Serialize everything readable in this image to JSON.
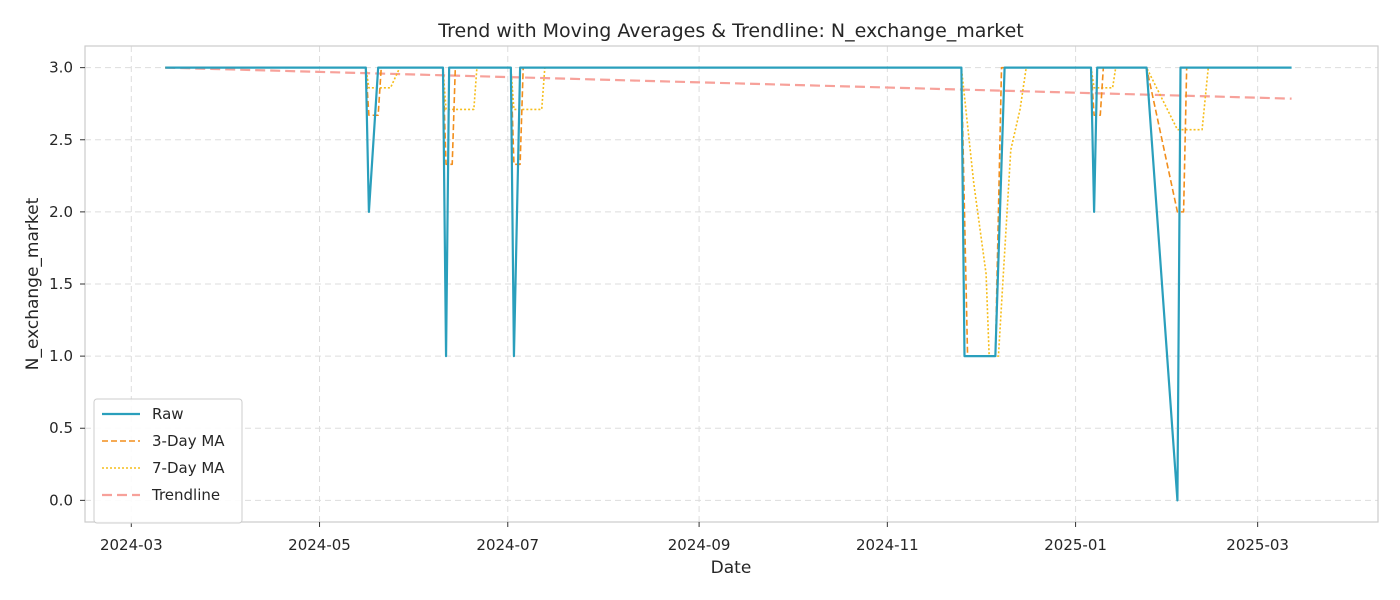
{
  "chart_data": {
    "type": "line",
    "title": "Trend with Moving Averages & Trendline: N_exchange_market",
    "xlabel": "Date",
    "ylabel": "N_exchange_market",
    "xlim": [
      "2024-02-15",
      "2025-04-09"
    ],
    "ylim": [
      -0.15,
      3.15
    ],
    "x_ticks": [
      "2024-03-01",
      "2024-05-01",
      "2024-07-01",
      "2024-09-01",
      "2024-11-01",
      "2025-01-01",
      "2025-03-01"
    ],
    "x_tick_labels": [
      "2024-03",
      "2024-05",
      "2024-07",
      "2024-09",
      "2024-11",
      "2025-01",
      "2025-03"
    ],
    "y_ticks": [
      0.0,
      0.5,
      1.0,
      1.5,
      2.0,
      2.5,
      3.0
    ],
    "y_tick_labels": [
      "0.0",
      "0.5",
      "1.0",
      "1.5",
      "2.0",
      "2.5",
      "3.0"
    ],
    "grid": true,
    "legend_position": "lower-left",
    "series": [
      {
        "name": "Raw",
        "color": "#2a9fbc",
        "style": "solid",
        "points": [
          [
            "2024-03-12",
            3
          ],
          [
            "2024-05-16",
            3
          ],
          [
            "2024-05-17",
            2
          ],
          [
            "2024-05-20",
            3
          ],
          [
            "2024-06-10",
            3
          ],
          [
            "2024-06-11",
            1
          ],
          [
            "2024-06-12",
            3
          ],
          [
            "2024-07-02",
            3
          ],
          [
            "2024-07-03",
            1
          ],
          [
            "2024-07-05",
            3
          ],
          [
            "2024-11-25",
            3
          ],
          [
            "2024-11-26",
            1
          ],
          [
            "2024-12-06",
            1
          ],
          [
            "2024-12-09",
            3
          ],
          [
            "2025-01-06",
            3
          ],
          [
            "2025-01-07",
            2
          ],
          [
            "2025-01-08",
            3
          ],
          [
            "2025-01-24",
            3
          ],
          [
            "2025-02-03",
            0
          ],
          [
            "2025-02-04",
            3
          ],
          [
            "2025-03-12",
            3
          ]
        ]
      },
      {
        "name": "3-Day MA",
        "color": "#f28e1c",
        "style": "dashed",
        "points": [
          [
            "2024-03-12",
            3
          ],
          [
            "2024-05-16",
            3
          ],
          [
            "2024-05-17",
            2.67
          ],
          [
            "2024-05-20",
            2.67
          ],
          [
            "2024-05-21",
            3
          ],
          [
            "2024-06-10",
            3
          ],
          [
            "2024-06-11",
            2.33
          ],
          [
            "2024-06-13",
            2.33
          ],
          [
            "2024-06-14",
            3
          ],
          [
            "2024-07-02",
            3
          ],
          [
            "2024-07-03",
            2.33
          ],
          [
            "2024-07-05",
            2.33
          ],
          [
            "2024-07-06",
            3
          ],
          [
            "2024-11-25",
            3
          ],
          [
            "2024-11-27",
            1.0
          ],
          [
            "2024-12-06",
            1.0
          ],
          [
            "2024-12-08",
            3
          ],
          [
            "2025-01-06",
            3
          ],
          [
            "2025-01-07",
            2.67
          ],
          [
            "2025-01-09",
            2.67
          ],
          [
            "2025-01-10",
            3
          ],
          [
            "2025-01-24",
            3
          ],
          [
            "2025-01-31",
            2.3
          ],
          [
            "2025-02-03",
            2.0
          ],
          [
            "2025-02-05",
            2.0
          ],
          [
            "2025-02-06",
            3
          ],
          [
            "2025-03-12",
            3
          ]
        ]
      },
      {
        "name": "7-Day MA",
        "color": "#f6bd1a",
        "style": "dotted",
        "points": [
          [
            "2024-03-12",
            3
          ],
          [
            "2024-05-16",
            3
          ],
          [
            "2024-05-17",
            2.86
          ],
          [
            "2024-05-24",
            2.86
          ],
          [
            "2024-05-27",
            3
          ],
          [
            "2024-06-10",
            3
          ],
          [
            "2024-06-11",
            2.71
          ],
          [
            "2024-06-20",
            2.71
          ],
          [
            "2024-06-21",
            3
          ],
          [
            "2024-07-02",
            3
          ],
          [
            "2024-07-03",
            2.71
          ],
          [
            "2024-07-12",
            2.71
          ],
          [
            "2024-07-13",
            3
          ],
          [
            "2024-11-25",
            3
          ],
          [
            "2024-11-29",
            2.2
          ],
          [
            "2024-12-03",
            1.57
          ],
          [
            "2024-12-04",
            1.0
          ],
          [
            "2024-12-07",
            1.0
          ],
          [
            "2024-12-11",
            2.43
          ],
          [
            "2024-12-14",
            2.71
          ],
          [
            "2024-12-16",
            3
          ],
          [
            "2025-01-06",
            3
          ],
          [
            "2025-01-07",
            2.86
          ],
          [
            "2025-01-13",
            2.86
          ],
          [
            "2025-01-14",
            3
          ],
          [
            "2025-01-24",
            3
          ],
          [
            "2025-02-03",
            2.57
          ],
          [
            "2025-02-11",
            2.57
          ],
          [
            "2025-02-13",
            3
          ],
          [
            "2025-03-12",
            3
          ]
        ]
      },
      {
        "name": "Trendline",
        "color": "#f7a19a",
        "style": "long-dashed",
        "points": [
          [
            "2024-03-12",
            3.0
          ],
          [
            "2025-03-12",
            2.785
          ]
        ]
      }
    ]
  }
}
